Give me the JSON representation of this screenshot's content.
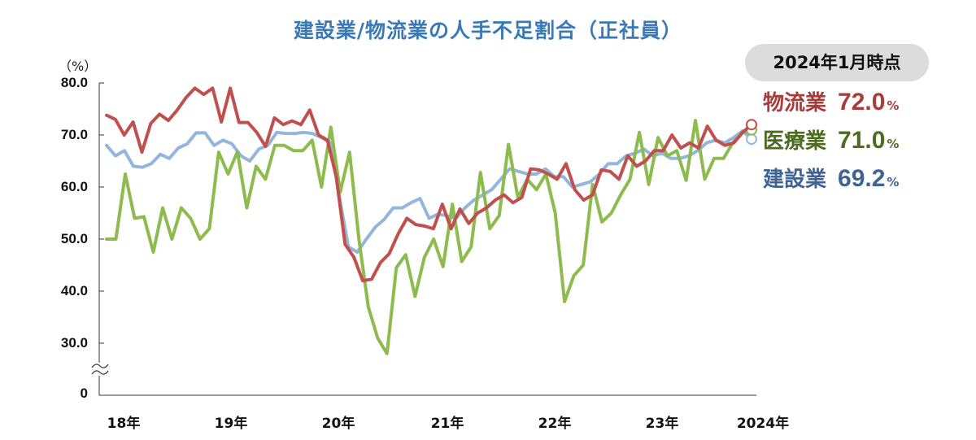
{
  "chart_data": {
    "type": "line",
    "title": "建設業/物流業の人手不足割合（正社員）",
    "unit_label": "（%）",
    "yticks": [
      "80.0",
      "70.0",
      "60.0",
      "50.0",
      "40.0",
      "30.0",
      "0"
    ],
    "xticks": [
      "18年",
      "19年",
      "20年",
      "21年",
      "22年",
      "23年",
      "2024年"
    ],
    "axis_break": true,
    "grid": false,
    "legend_placement": "right",
    "legend_header": "2024年1月時点",
    "series": [
      {
        "name": "物流業",
        "color": "#c0504d",
        "last_value_label": "72.0",
        "unit": "%",
        "values": [
          73.8,
          73.0,
          70.0,
          72.5,
          66.7,
          72.2,
          74.0,
          72.8,
          74.8,
          77.2,
          79.0,
          77.8,
          79.0,
          72.5,
          79.0,
          72.4,
          72.4,
          70.5,
          67.8,
          73.3,
          72.0,
          72.7,
          72.0,
          74.8,
          70.0,
          69.0,
          62.0,
          49.0,
          46.5,
          42.0,
          42.3,
          45.5,
          47.2,
          51.0,
          54.0,
          52.8,
          52.5,
          52.0,
          56.7,
          52.0,
          55.8,
          53.0,
          55.0,
          56.0,
          57.5,
          58.5,
          57.0,
          58.0,
          63.5,
          63.3,
          62.5,
          61.5,
          64.5,
          59.5,
          57.5,
          58.5,
          63.3,
          63.0,
          61.5,
          66.0,
          64.0,
          65.0,
          67.0,
          67.0,
          70.0,
          67.5,
          68.5,
          67.5,
          71.7,
          69.0,
          68.0,
          68.5,
          70.5,
          72.0
        ]
      },
      {
        "name": "医療業",
        "color": "#8dbb4e",
        "last_value_label": "71.0",
        "unit": "%",
        "values": [
          50.0,
          50.0,
          62.5,
          54.0,
          54.3,
          47.5,
          56.0,
          50.0,
          56.0,
          54.0,
          50.0,
          52.0,
          66.7,
          62.5,
          66.8,
          56.0,
          64.0,
          61.5,
          68.0,
          68.0,
          67.0,
          67.0,
          69.0,
          60.0,
          71.5,
          59.0,
          66.7,
          50.0,
          37.0,
          31.0,
          28.0,
          44.5,
          47.0,
          39.0,
          46.5,
          50.0,
          44.7,
          56.7,
          45.7,
          48.5,
          62.8,
          52.0,
          54.5,
          68.2,
          58.0,
          61.5,
          59.5,
          62.5,
          55.0,
          38.0,
          43.0,
          45.0,
          60.5,
          53.3,
          55.0,
          58.5,
          61.5,
          70.5,
          60.5,
          69.5,
          66.0,
          67.0,
          61.3,
          72.8,
          61.5,
          65.5,
          65.5,
          68.5,
          70.5,
          71.0
        ]
      },
      {
        "name": "建設業",
        "color": "#94b6dd",
        "last_value_label": "69.2",
        "unit": "%",
        "values": [
          68.0,
          66.0,
          67.0,
          64.0,
          63.8,
          64.5,
          66.3,
          65.5,
          67.5,
          68.3,
          70.4,
          70.4,
          68.0,
          69.0,
          68.3,
          66.0,
          65.0,
          67.3,
          68.0,
          70.5,
          70.3,
          70.3,
          70.5,
          70.3,
          69.5,
          68.5,
          58.0,
          48.5,
          47.5,
          50.0,
          52.3,
          53.8,
          56.0,
          56.0,
          57.0,
          57.8,
          54.0,
          54.8,
          54.5,
          54.0,
          56.0,
          57.5,
          58.5,
          59.5,
          61.5,
          63.5,
          63.0,
          62.5,
          62.5,
          63.5,
          62.0,
          62.0,
          60.0,
          60.5,
          61.0,
          62.5,
          64.5,
          64.5,
          66.0,
          66.5,
          67.3,
          66.0,
          66.5,
          65.5,
          65.5,
          66.0,
          67.0,
          68.5,
          69.0,
          68.5,
          69.5,
          70.8,
          69.2
        ]
      }
    ]
  }
}
